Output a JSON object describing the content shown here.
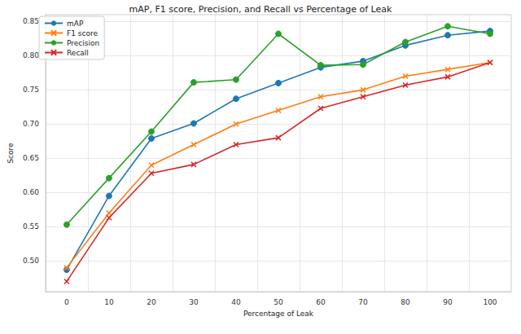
{
  "chart_data": {
    "type": "line",
    "title": "mAP, F1 score, Precision, and Recall vs Percentage of Leak",
    "x_label": "Percentage of Leak",
    "y_label": "Score",
    "categories": [
      "0",
      "10",
      "20",
      "30",
      "40",
      "50",
      "60",
      "70",
      "80",
      "90",
      "100"
    ],
    "series": [
      {
        "name": "mAP",
        "color": "#1f77b4",
        "marker": "o",
        "values": [
          0.487,
          0.595,
          0.679,
          0.701,
          0.737,
          0.76,
          0.783,
          0.792,
          0.815,
          0.83,
          0.836
        ]
      },
      {
        "name": "F1 score",
        "color": "#ff7f0e",
        "marker": "x",
        "values": [
          0.49,
          0.57,
          0.64,
          0.67,
          0.7,
          0.72,
          0.74,
          0.75,
          0.77,
          0.78,
          0.79
        ]
      },
      {
        "name": "Precision",
        "color": "#2ca02c",
        "marker": "o",
        "values": [
          0.553,
          0.621,
          0.689,
          0.761,
          0.765,
          0.832,
          0.786,
          0.787,
          0.82,
          0.843,
          0.832
        ]
      },
      {
        "name": "Recall",
        "color": "#d62728",
        "marker": "x",
        "values": [
          0.47,
          0.563,
          0.628,
          0.641,
          0.67,
          0.68,
          0.723,
          0.74,
          0.757,
          0.769,
          0.79
        ]
      }
    ],
    "ylim": [
      0.455,
      0.86
    ],
    "yticks": [
      {
        "value": 0.5,
        "label": "0.50"
      },
      0.55,
      {
        "value": 0.6,
        "label": "0.60"
      },
      0.65,
      {
        "value": 0.7,
        "label": "0.70"
      },
      0.75,
      {
        "value": 0.8,
        "label": "0.80"
      },
      0.85
    ],
    "grid": true,
    "legend": "top-left"
  }
}
